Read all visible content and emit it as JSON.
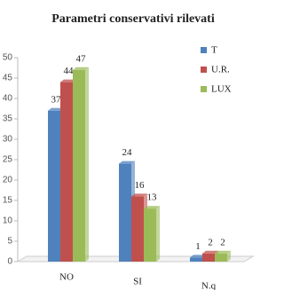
{
  "chart_data": {
    "type": "bar",
    "title": "Parametri conservativi rilevati",
    "categories": [
      "NO",
      "SI",
      "N.q"
    ],
    "series": [
      {
        "name": "T",
        "color": "#4f81bd",
        "values": [
          37,
          24,
          1
        ]
      },
      {
        "name": "U.R.",
        "color": "#c0504d",
        "values": [
          44,
          16,
          2
        ]
      },
      {
        "name": "LUX",
        "color": "#9bbb59",
        "values": [
          47,
          13,
          2
        ]
      }
    ],
    "ylim": [
      0,
      50
    ],
    "yticks": [
      0,
      5,
      10,
      15,
      20,
      25,
      30,
      35,
      40,
      45,
      50
    ],
    "legend": "right"
  }
}
